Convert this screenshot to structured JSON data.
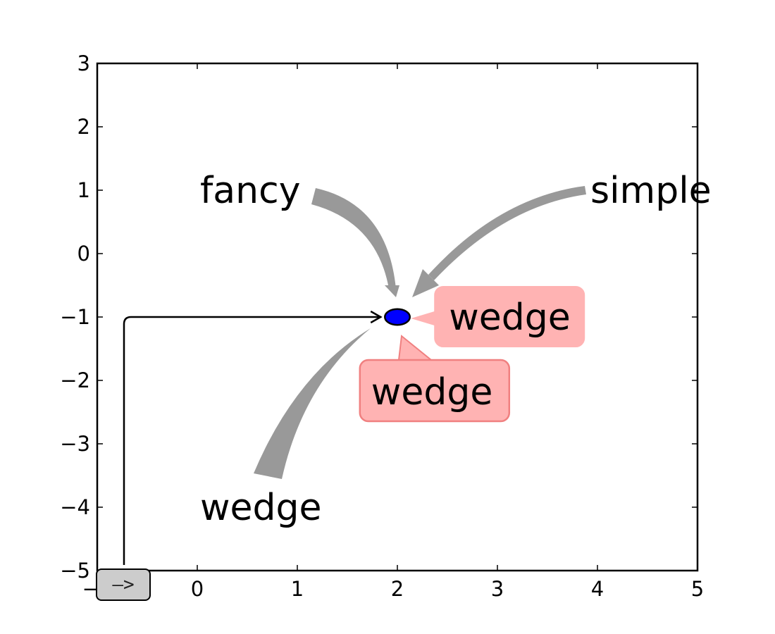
{
  "chart_data": {
    "type": "scatter",
    "title": "",
    "xlabel": "",
    "ylabel": "",
    "xlim": [
      -1,
      5
    ],
    "ylim": [
      -5,
      3
    ],
    "grid": false,
    "x_ticks": [
      {
        "value": -1,
        "label": "−1"
      },
      {
        "value": 0,
        "label": "0"
      },
      {
        "value": 1,
        "label": "1"
      },
      {
        "value": 2,
        "label": "2"
      },
      {
        "value": 3,
        "label": "3"
      },
      {
        "value": 4,
        "label": "4"
      },
      {
        "value": 5,
        "label": "5"
      }
    ],
    "y_ticks": [
      {
        "value": -5,
        "label": "−5"
      },
      {
        "value": -4,
        "label": "−4"
      },
      {
        "value": -3,
        "label": "−3"
      },
      {
        "value": -2,
        "label": "−2"
      },
      {
        "value": -1,
        "label": "−1"
      },
      {
        "value": 0,
        "label": "0"
      },
      {
        "value": 1,
        "label": "1"
      },
      {
        "value": 2,
        "label": "2"
      },
      {
        "value": 3,
        "label": "3"
      }
    ],
    "marker": {
      "shape": "ellipse",
      "x": 2,
      "y": -1,
      "width": 0.5,
      "height": 0.5,
      "color": "#0000ff"
    },
    "annotations": [
      {
        "id": "fancy",
        "text": "fancy",
        "text_xy": [
          0,
          1
        ],
        "target_xy": [
          2,
          -1
        ],
        "style": "fancy",
        "color": "#999999"
      },
      {
        "id": "simple",
        "text": "simple",
        "text_xy": [
          4,
          1
        ],
        "target_xy": [
          2,
          -1
        ],
        "style": "simple",
        "color": "#999999"
      },
      {
        "id": "wedge_big",
        "text": "wedge",
        "text_xy": [
          0,
          -4
        ],
        "target_xy": [
          2,
          -1
        ],
        "style": "wedge",
        "color": "#999999"
      },
      {
        "id": "wedge_box_right",
        "text": "wedge",
        "text_xy": [
          2.6,
          -1
        ],
        "target_xy": [
          2,
          -1
        ],
        "style": "wedge-box",
        "color": "#ffb3b3",
        "edge_color": "#ffb3b3"
      },
      {
        "id": "wedge_box_below",
        "text": "wedge",
        "text_xy": [
          1.9,
          -2.2
        ],
        "target_xy": [
          2,
          -1
        ],
        "style": "wedge-box",
        "color": "#ffb3b3",
        "edge_color": "#f08080"
      },
      {
        "id": "arrow_box",
        "text": "—>",
        "text_xy": [
          -0.75,
          -5.2
        ],
        "target_xy": [
          2,
          -1
        ],
        "style": "angle-arrow",
        "color": "#cccccc"
      }
    ]
  }
}
